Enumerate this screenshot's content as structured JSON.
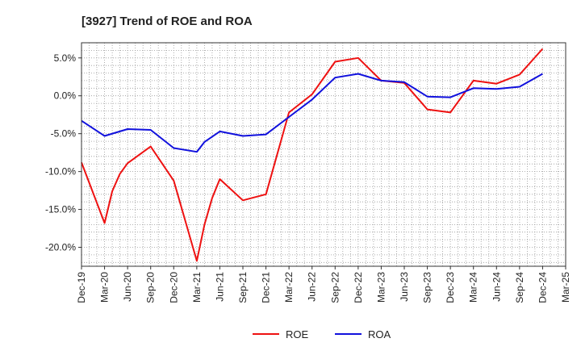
{
  "chart_data": {
    "type": "line",
    "title": "[3927]  Trend of ROE and ROA",
    "xlabel": "",
    "ylabel": "",
    "x_tick_labels": [
      "Dec-19",
      "Mar-20",
      "Jun-20",
      "Sep-20",
      "Dec-20",
      "Mar-21",
      "Jun-21",
      "Sep-21",
      "Dec-21",
      "Mar-22",
      "Jun-22",
      "Sep-22",
      "Dec-22",
      "Mar-23",
      "Jun-23",
      "Sep-23",
      "Dec-23",
      "Mar-24",
      "Jun-24",
      "Sep-24",
      "Dec-24",
      "Mar-25"
    ],
    "y_ticks": [
      5,
      0,
      -5,
      -10,
      -15,
      -20
    ],
    "y_tick_labels": [
      "5.0%",
      "0.0%",
      "-5.0%",
      "-10.0%",
      "-15.0%",
      "-20.0%"
    ],
    "ylim": [
      -22.5,
      7
    ],
    "x_unit": "month",
    "grid": true,
    "legend_position": "bottom-center",
    "series": [
      {
        "name": "ROE",
        "color": "#ee1111",
        "points": [
          {
            "x": "Dec-19",
            "y": -8.8
          },
          {
            "x": "Mar-20",
            "y": -16.8
          },
          {
            "x": "Apr-20",
            "y": -12.6
          },
          {
            "x": "May-20",
            "y": -10.3
          },
          {
            "x": "Jun-20",
            "y": -8.9
          },
          {
            "x": "Sep-20",
            "y": -6.7
          },
          {
            "x": "Dec-20",
            "y": -11.2
          },
          {
            "x": "Mar-21",
            "y": -21.8
          },
          {
            "x": "Apr-21",
            "y": -17.0
          },
          {
            "x": "May-21",
            "y": -13.5
          },
          {
            "x": "Jun-21",
            "y": -11.0
          },
          {
            "x": "Sep-21",
            "y": -13.8
          },
          {
            "x": "Dec-21",
            "y": -13.0
          },
          {
            "x": "Mar-22",
            "y": -2.2
          },
          {
            "x": "Jun-22",
            "y": 0.2
          },
          {
            "x": "Sep-22",
            "y": 4.5
          },
          {
            "x": "Dec-22",
            "y": 5.0
          },
          {
            "x": "Mar-23",
            "y": 2.0
          },
          {
            "x": "Jun-23",
            "y": 1.7
          },
          {
            "x": "Sep-23",
            "y": -1.8
          },
          {
            "x": "Dec-23",
            "y": -2.2
          },
          {
            "x": "Mar-24",
            "y": 2.0
          },
          {
            "x": "Jun-24",
            "y": 1.6
          },
          {
            "x": "Sep-24",
            "y": 2.8
          },
          {
            "x": "Dec-24",
            "y": 6.2
          }
        ]
      },
      {
        "name": "ROA",
        "color": "#1111dd",
        "points": [
          {
            "x": "Dec-19",
            "y": -3.3
          },
          {
            "x": "Mar-20",
            "y": -5.3
          },
          {
            "x": "Jun-20",
            "y": -4.4
          },
          {
            "x": "Sep-20",
            "y": -4.5
          },
          {
            "x": "Dec-20",
            "y": -6.9
          },
          {
            "x": "Mar-21",
            "y": -7.4
          },
          {
            "x": "Apr-21",
            "y": -6.1
          },
          {
            "x": "Jun-21",
            "y": -4.7
          },
          {
            "x": "Sep-21",
            "y": -5.3
          },
          {
            "x": "Dec-21",
            "y": -5.1
          },
          {
            "x": "Mar-22",
            "y": -2.8
          },
          {
            "x": "Jun-22",
            "y": -0.5
          },
          {
            "x": "Sep-22",
            "y": 2.4
          },
          {
            "x": "Dec-22",
            "y": 2.9
          },
          {
            "x": "Mar-23",
            "y": 2.0
          },
          {
            "x": "Jun-23",
            "y": 1.8
          },
          {
            "x": "Sep-23",
            "y": -0.1
          },
          {
            "x": "Dec-23",
            "y": -0.2
          },
          {
            "x": "Mar-24",
            "y": 1.0
          },
          {
            "x": "Jun-24",
            "y": 0.9
          },
          {
            "x": "Sep-24",
            "y": 1.2
          },
          {
            "x": "Dec-24",
            "y": 2.9
          }
        ]
      }
    ]
  }
}
